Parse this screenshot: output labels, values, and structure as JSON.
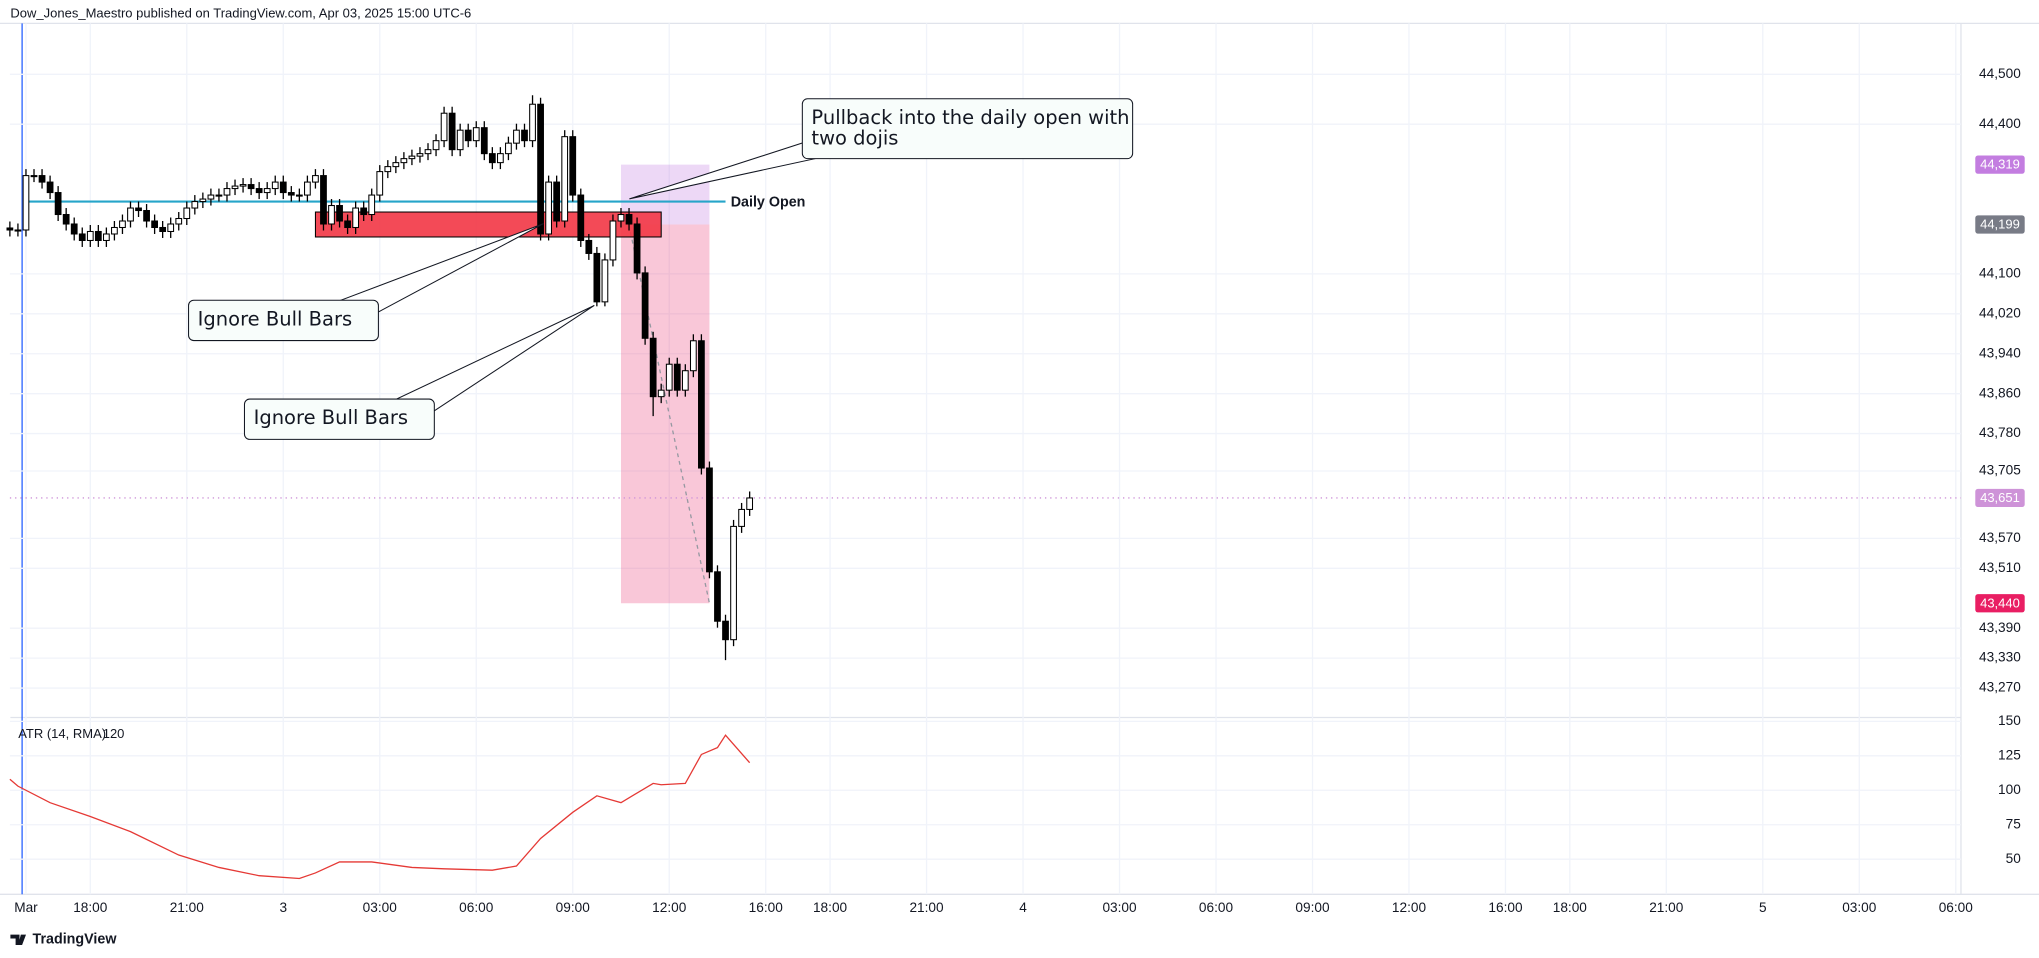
{
  "header": "Dow_Jones_Maestro published on TradingView.com, Apr 03, 2025 15:00 UTC-6",
  "footer": "TradingView",
  "chart_data": {
    "type": "candlestick",
    "x": [
      -0.5,
      -0.25,
      0,
      0.25,
      0.5,
      0.75,
      1,
      1.25,
      1.5,
      1.75,
      2,
      2.25,
      2.5,
      2.75,
      3,
      3.25,
      3.5,
      3.75,
      4,
      4.25,
      4.5,
      4.75,
      5,
      5.25,
      5.5,
      5.75,
      6,
      6.25,
      6.5,
      6.75,
      7,
      7.25,
      7.5,
      7.75,
      8,
      8.25,
      8.5,
      8.75,
      9,
      9.25,
      9.5,
      9.75,
      10,
      10.25,
      10.5,
      10.75,
      11,
      11.25,
      11.5,
      11.75,
      12,
      12.25,
      12.5,
      12.75,
      13,
      13.25,
      13.5,
      13.75,
      14,
      14.25,
      14.5,
      14.75,
      15,
      15.25,
      15.5,
      15.75,
      16,
      16.25,
      16.5,
      16.75,
      17,
      17.25,
      17.5,
      17.75,
      18,
      18.25,
      18.5,
      18.75,
      19,
      19.25,
      19.5,
      19.75,
      20,
      20.25,
      20.5,
      20.75,
      21,
      21.25,
      21.5,
      21.75,
      22,
      22.25,
      22.5
    ],
    "open": [
      44192,
      44188,
      44188,
      44297,
      44297,
      44284,
      44263,
      44219,
      44200,
      44180,
      44167,
      44185,
      44167,
      44180,
      44193,
      44206,
      44232,
      44227,
      44206,
      44193,
      44185,
      44200,
      44211,
      44232,
      44245,
      44250,
      44258,
      44258,
      44271,
      44276,
      44279,
      44271,
      44263,
      44271,
      44284,
      44263,
      44258,
      44258,
      44284,
      44297,
      44200,
      44237,
      44206,
      44193,
      44232,
      44219,
      44258,
      44305,
      44315,
      44323,
      44331,
      44336,
      44341,
      44349,
      44367,
      44422,
      44349,
      44388,
      44367,
      44393,
      44341,
      44323,
      44341,
      44362,
      44388,
      44367,
      44440,
      44180,
      44284,
      44206,
      44375,
      44258,
      44167,
      44141,
      44044,
      44128,
      44206,
      44219,
      44200,
      44102,
      43971,
      43854,
      43867,
      43919,
      43867,
      43906,
      43966,
      43711,
      43503,
      43404,
      43367,
      43594,
      43628
    ],
    "high": [
      44205,
      44201,
      44310,
      44310,
      44310,
      44297,
      44276,
      44232,
      44213,
      44193,
      44198,
      44198,
      44193,
      44206,
      44219,
      44245,
      44245,
      44240,
      44219,
      44206,
      44213,
      44224,
      44245,
      44258,
      44263,
      44271,
      44271,
      44284,
      44289,
      44292,
      44292,
      44284,
      44284,
      44297,
      44297,
      44276,
      44271,
      44297,
      44310,
      44310,
      44250,
      44250,
      44219,
      44245,
      44245,
      44271,
      44318,
      44328,
      44336,
      44344,
      44349,
      44354,
      44362,
      44380,
      44435,
      44435,
      44401,
      44401,
      44406,
      44406,
      44354,
      44354,
      44375,
      44401,
      44401,
      44458,
      44453,
      44297,
      44297,
      44388,
      44388,
      44271,
      44180,
      44154,
      44141,
      44219,
      44232,
      44232,
      44213,
      44115,
      43984,
      43880,
      43932,
      43932,
      43919,
      43979,
      43979,
      43724,
      43516,
      43417,
      43607,
      43641,
      43664
    ],
    "low": [
      44175,
      44175,
      44175,
      44284,
      44271,
      44250,
      44206,
      44187,
      44167,
      44154,
      44154,
      44154,
      44154,
      44167,
      44180,
      44193,
      44214,
      44193,
      44180,
      44172,
      44172,
      44187,
      44198,
      44219,
      44232,
      44237,
      44245,
      44245,
      44258,
      44263,
      44258,
      44250,
      44250,
      44258,
      44250,
      44245,
      44245,
      44245,
      44271,
      44187,
      44187,
      44193,
      44180,
      44180,
      44206,
      44206,
      44245,
      44292,
      44302,
      44310,
      44318,
      44323,
      44328,
      44336,
      44354,
      44336,
      44336,
      44354,
      44354,
      44328,
      44310,
      44310,
      44328,
      44349,
      44354,
      44354,
      44167,
      44167,
      44193,
      44193,
      44245,
      44154,
      44128,
      44035,
      44035,
      44115,
      44193,
      44187,
      44089,
      43958,
      43815,
      43841,
      43854,
      43854,
      43854,
      43893,
      43698,
      43490,
      43391,
      43326,
      43354,
      43581,
      43615
    ],
    "close": [
      44188,
      44188,
      44297,
      44297,
      44284,
      44263,
      44219,
      44200,
      44180,
      44167,
      44185,
      44167,
      44180,
      44193,
      44206,
      44232,
      44227,
      44206,
      44193,
      44185,
      44200,
      44211,
      44232,
      44245,
      44250,
      44258,
      44258,
      44271,
      44276,
      44279,
      44271,
      44263,
      44271,
      44284,
      44263,
      44258,
      44258,
      44284,
      44297,
      44200,
      44237,
      44206,
      44193,
      44232,
      44219,
      44258,
      44305,
      44315,
      44323,
      44331,
      44336,
      44341,
      44349,
      44367,
      44422,
      44349,
      44388,
      44367,
      44393,
      44341,
      44323,
      44341,
      44362,
      44388,
      44367,
      44440,
      44180,
      44284,
      44206,
      44375,
      44258,
      44167,
      44141,
      44044,
      44128,
      44206,
      44219,
      44200,
      44102,
      43971,
      43854,
      43867,
      43919,
      43867,
      43906,
      43966,
      43711,
      43503,
      43404,
      43367,
      43594,
      43628,
      43651
    ],
    "up_color": "#ffffff",
    "down_color": "#000000",
    "xlim": [
      -0.5,
      60
    ],
    "ylim": [
      43211,
      44602
    ],
    "xticks": [
      {
        "value": 0,
        "label": "Mar"
      },
      {
        "value": 2,
        "label": "18:00"
      },
      {
        "value": 5,
        "label": "21:00"
      },
      {
        "value": 8,
        "label": "3"
      },
      {
        "value": 11,
        "label": "03:00"
      },
      {
        "value": 14,
        "label": "06:00"
      },
      {
        "value": 17,
        "label": "09:00"
      },
      {
        "value": 20,
        "label": "12:00"
      },
      {
        "value": 23,
        "label": "16:00"
      },
      {
        "value": 25,
        "label": "18:00"
      },
      {
        "value": 28,
        "label": "21:00"
      },
      {
        "value": 31,
        "label": "4"
      },
      {
        "value": 34,
        "label": "03:00"
      },
      {
        "value": 37,
        "label": "06:00"
      },
      {
        "value": 40,
        "label": "09:00"
      },
      {
        "value": 43,
        "label": "12:00"
      },
      {
        "value": 46,
        "label": "16:00"
      },
      {
        "value": 48,
        "label": "18:00"
      },
      {
        "value": 51,
        "label": "21:00"
      },
      {
        "value": 54,
        "label": "5"
      },
      {
        "value": 57,
        "label": "03:00"
      },
      {
        "value": 60,
        "label": "06:00"
      }
    ],
    "yticks": [
      {
        "value": 44500,
        "label": "44,500"
      },
      {
        "value": 44400,
        "label": "44,400"
      },
      {
        "value": 44100,
        "label": "44,100"
      },
      {
        "value": 44020,
        "label": "44,020"
      },
      {
        "value": 43940,
        "label": "43,940"
      },
      {
        "value": 43860,
        "label": "43,860"
      },
      {
        "value": 43780,
        "label": "43,780"
      },
      {
        "value": 43705,
        "label": "43,705"
      },
      {
        "value": 43570,
        "label": "43,570"
      },
      {
        "value": 43510,
        "label": "43,510"
      },
      {
        "value": 43390,
        "label": "43,390"
      },
      {
        "value": 43330,
        "label": "43,330"
      },
      {
        "value": 43270,
        "label": "43,270"
      }
    ],
    "grid": true,
    "last_price_label": "43,651",
    "last_price_color": "#ce93d8",
    "daily_open": {
      "label": "Daily Open",
      "value": 44245,
      "x": [
        0,
        21.75
      ],
      "color": "#26a5c9"
    },
    "zone": {
      "top": 44224,
      "bottom": 44174,
      "x": [
        9,
        19.75
      ],
      "color": "#f23645"
    },
    "short_position": {
      "entry": 44199,
      "entry_label": "44,199",
      "stop": 44319,
      "stop_label": "44,319",
      "target": 43440,
      "target_label": "43,440",
      "x": [
        18.5,
        21.25
      ],
      "stop_color": "#c37de0",
      "entry_color": "#787b86",
      "target_color": "#e91e63"
    },
    "annotations": [
      {
        "lines": [
          "Pullback into the daily open with",
          "two dojis"
        ]
      },
      {
        "lines": [
          "Ignore Bull Bars"
        ]
      },
      {
        "lines": [
          "Ignore Bull Bars"
        ]
      }
    ],
    "atr": {
      "type": "line",
      "label": "ATR (14, RMA)",
      "color": "#e53935",
      "x": [
        -0.5,
        -0.25,
        0.75,
        2,
        3.25,
        4.75,
        6,
        7.25,
        8.5,
        9,
        9.75,
        10.75,
        12,
        13,
        14.5,
        15.25,
        16,
        17,
        17.75,
        18.5,
        19.5,
        19.75,
        20.5,
        21,
        21.5,
        21.75,
        22.5
      ],
      "values": [
        108,
        103,
        91,
        81,
        70,
        53,
        44,
        38,
        36,
        40,
        48,
        48,
        44,
        43,
        42,
        45,
        65,
        84,
        96,
        91,
        105,
        104,
        105,
        126,
        131,
        140,
        120
      ],
      "ylim": [
        24.5,
        152.8
      ],
      "yticks": [
        150,
        125,
        100,
        75,
        50
      ]
    }
  }
}
